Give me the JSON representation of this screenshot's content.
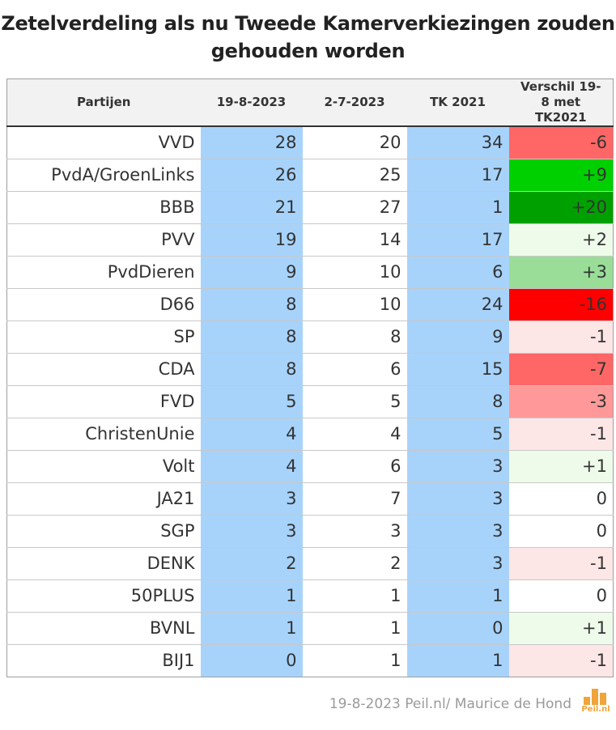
{
  "title_line1": "Zetelverdeling als nu Tweede Kamerverkiezingen zouden",
  "title_line2": "gehouden worden",
  "footer": "19-8-2023 Peil.nl/ Maurice de Hond",
  "logo_text": "Peil.nl",
  "colors": {
    "blue_column": "#a7d3fb",
    "diff_plus_20": "#00a000",
    "diff_plus_9": "#00d000",
    "diff_plus_3": "#99dd99",
    "diff_small_plus": "#eefbea",
    "diff_small_minus": "#fde6e6",
    "diff_minus_3": "#ff9999",
    "diff_minus_6_7": "#ff6666",
    "diff_minus_16": "#ff0000"
  },
  "chart_data": {
    "type": "table",
    "title": "Zetelverdeling als nu Tweede Kamerverkiezingen zouden gehouden worden",
    "columns": [
      "Partijen",
      "19-8-2023",
      "2-7-2023",
      "TK 2021",
      "Verschil 19-8 met TK2021"
    ],
    "rows": [
      {
        "party": "VVD",
        "d1": "28",
        "d2": "20",
        "tk": "34",
        "diff": "-6",
        "diff_color": "#ff6666"
      },
      {
        "party": "PvdA/GroenLinks",
        "d1": "26",
        "d2": "25",
        "tk": "17",
        "diff": "+9",
        "diff_color": "#00d000"
      },
      {
        "party": "BBB",
        "d1": "21",
        "d2": "27",
        "tk": "1",
        "diff": "+20",
        "diff_color": "#00a000"
      },
      {
        "party": "PVV",
        "d1": "19",
        "d2": "14",
        "tk": "17",
        "diff": "+2",
        "diff_color": "#eefbea"
      },
      {
        "party": "PvdDieren",
        "d1": "9",
        "d2": "10",
        "tk": "6",
        "diff": "+3",
        "diff_color": "#99dd99"
      },
      {
        "party": "D66",
        "d1": "8",
        "d2": "10",
        "tk": "24",
        "diff": "-16",
        "diff_color": "#ff0000"
      },
      {
        "party": "SP",
        "d1": "8",
        "d2": "8",
        "tk": "9",
        "diff": "-1",
        "diff_color": "#fde6e6"
      },
      {
        "party": "CDA",
        "d1": "8",
        "d2": "6",
        "tk": "15",
        "diff": "-7",
        "diff_color": "#ff6666"
      },
      {
        "party": "FVD",
        "d1": "5",
        "d2": "5",
        "tk": "8",
        "diff": "-3",
        "diff_color": "#ff9999"
      },
      {
        "party": "ChristenUnie",
        "d1": "4",
        "d2": "4",
        "tk": "5",
        "diff": "-1",
        "diff_color": "#fde6e6"
      },
      {
        "party": "Volt",
        "d1": "4",
        "d2": "6",
        "tk": "3",
        "diff": "+1",
        "diff_color": "#eefbea"
      },
      {
        "party": "JA21",
        "d1": "3",
        "d2": "7",
        "tk": "3",
        "diff": "0",
        "diff_color": "#ffffff"
      },
      {
        "party": "SGP",
        "d1": "3",
        "d2": "3",
        "tk": "3",
        "diff": "0",
        "diff_color": "#ffffff"
      },
      {
        "party": "DENK",
        "d1": "2",
        "d2": "2",
        "tk": "3",
        "diff": "-1",
        "diff_color": "#fde6e6"
      },
      {
        "party": "50PLUS",
        "d1": "1",
        "d2": "1",
        "tk": "1",
        "diff": "0",
        "diff_color": "#ffffff"
      },
      {
        "party": "BVNL",
        "d1": "1",
        "d2": "1",
        "tk": "0",
        "diff": "+1",
        "diff_color": "#eefbea"
      },
      {
        "party": "BIJ1",
        "d1": "0",
        "d2": "1",
        "tk": "1",
        "diff": "-1",
        "diff_color": "#fde6e6"
      }
    ]
  }
}
